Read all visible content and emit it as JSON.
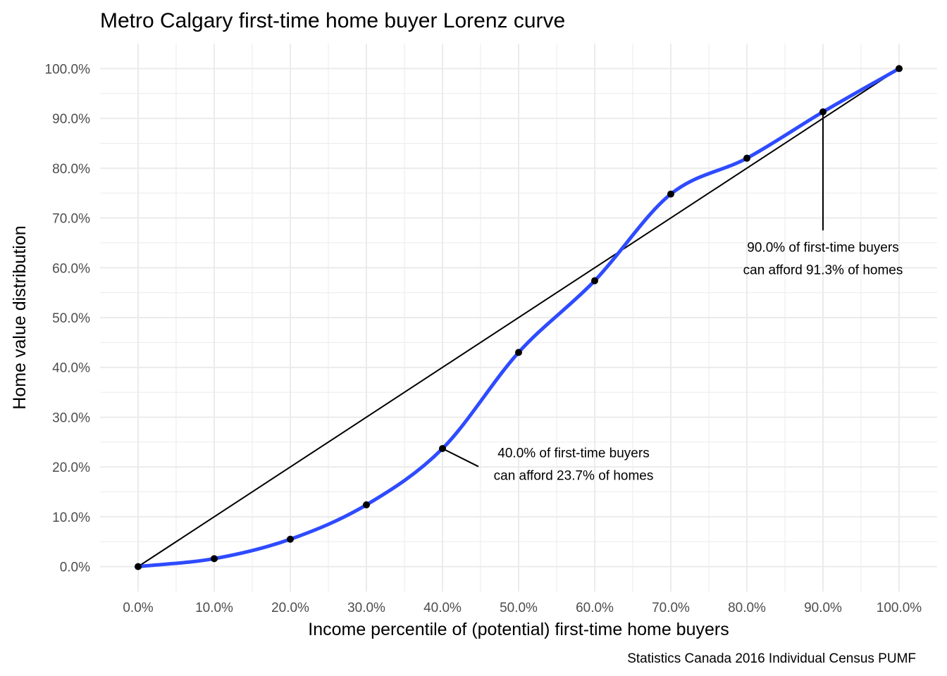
{
  "chart_data": {
    "type": "line",
    "title": "Metro Calgary first-time home buyer Lorenz curve",
    "xlabel": "Income percentile of (potential) first-time home buyers",
    "ylabel": "Home value distribution",
    "caption": "Statistics Canada 2016 Individual Census PUMF",
    "xlim": [
      -0.05,
      1.05
    ],
    "ylim": [
      -0.05,
      1.05
    ],
    "x_ticks": [
      0,
      0.1,
      0.2,
      0.3,
      0.4,
      0.5,
      0.6,
      0.7,
      0.8,
      0.9,
      1.0
    ],
    "x_tick_labels": [
      "0.0%",
      "10.0%",
      "20.0%",
      "30.0%",
      "40.0%",
      "50.0%",
      "60.0%",
      "70.0%",
      "80.0%",
      "90.0%",
      "100.0%"
    ],
    "y_ticks": [
      0,
      0.1,
      0.2,
      0.3,
      0.4,
      0.5,
      0.6,
      0.7,
      0.8,
      0.9,
      1.0
    ],
    "y_tick_labels": [
      "0.0%",
      "10.0%",
      "20.0%",
      "30.0%",
      "40.0%",
      "50.0%",
      "60.0%",
      "70.0%",
      "80.0%",
      "90.0%",
      "100.0%"
    ],
    "grid": true,
    "series": [
      {
        "color": "#2E4BFF",
        "x": [
          0,
          0.1,
          0.2,
          0.3,
          0.4,
          0.5,
          0.6,
          0.7,
          0.8,
          0.9,
          1.0
        ],
        "y": [
          0,
          0.016,
          0.055,
          0.124,
          0.237,
          0.43,
          0.574,
          0.748,
          0.82,
          0.913,
          1.0
        ]
      }
    ],
    "equality_line": {
      "color": "#000000",
      "x": [
        0,
        1
      ],
      "y": [
        0,
        1
      ]
    },
    "annotations": [
      {
        "point": [
          0.4,
          0.237
        ],
        "text_anchor": [
          0.45,
          0.215
        ],
        "lines": [
          "40.0% of first-time buyers",
          "can afford 23.7% of homes"
        ]
      },
      {
        "point": [
          0.9,
          0.913
        ],
        "text_anchor": [
          0.9,
          0.665
        ],
        "lines": [
          "90.0% of first-time buyers",
          "can afford 91.3% of homes"
        ]
      }
    ]
  }
}
